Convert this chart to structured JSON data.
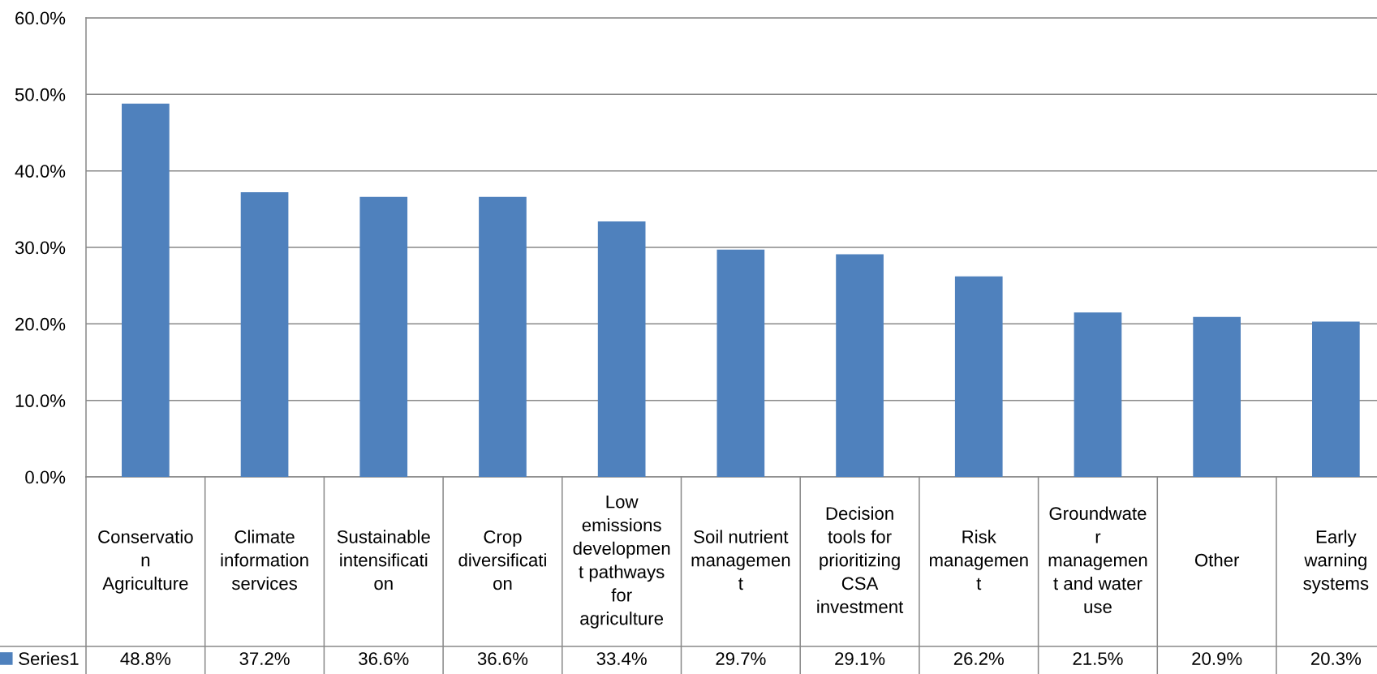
{
  "chart_data": {
    "type": "bar",
    "categories": [
      "Conservatio\nn\nAgriculture",
      "Climate\ninformation\nservices",
      "Sustainable\nintensificati\non",
      "Crop\ndiversificati\non",
      "Low\nemissions\ndevelopmen\nt pathways\nfor\nagriculture",
      "Soil nutrient\nmanagemen\nt",
      "Decision\ntools for\nprioritizing\nCSA\ninvestment",
      "Risk\nmanagemen\nt",
      "Groundwate\nr\nmanagemen\nt and water\nuse",
      "Other",
      "Early\nwarning\nsystems"
    ],
    "series": [
      {
        "name": "Series1",
        "color": "#4f81bd",
        "values": [
          48.8,
          37.2,
          36.6,
          36.6,
          33.4,
          29.7,
          29.1,
          26.2,
          21.5,
          20.9,
          20.3
        ],
        "value_labels": [
          "48.8%",
          "37.2%",
          "36.6%",
          "36.6%",
          "33.4%",
          "29.7%",
          "29.1%",
          "26.2%",
          "21.5%",
          "20.9%",
          "20.3%"
        ]
      }
    ],
    "ylim": [
      0,
      60
    ],
    "yticks": [
      {
        "value": 0,
        "label": "0.0%"
      },
      {
        "value": 10,
        "label": "10.0%"
      },
      {
        "value": 20,
        "label": "20.0%"
      },
      {
        "value": 30,
        "label": "30.0%"
      },
      {
        "value": 40,
        "label": "40.0%"
      },
      {
        "value": 50,
        "label": "50.0%"
      },
      {
        "value": 60,
        "label": "60.0%"
      }
    ],
    "grid": "y",
    "legend": "bottom left"
  }
}
